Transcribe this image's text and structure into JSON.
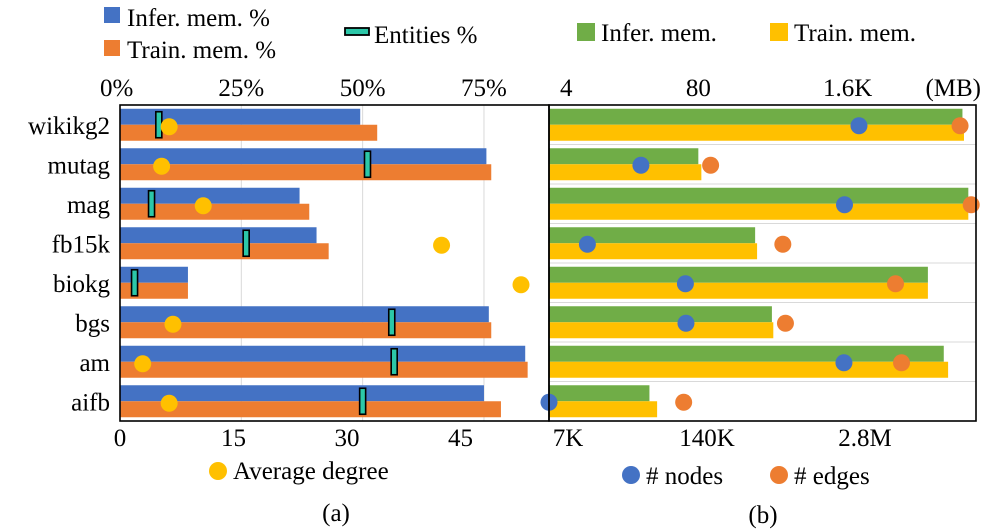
{
  "colors": {
    "infer_a": "#4472C4",
    "train_a": "#ED7D31",
    "entities": "#2CC7A8",
    "avg_degree": "#FFC000",
    "infer_b": "#70AD47",
    "train_b": "#FFC000",
    "nodes": "#4472C4",
    "edges": "#ED7D31"
  },
  "chart_data": [
    {
      "type": "bar",
      "caption": "(a)",
      "orientation": "horizontal",
      "categories": [
        "wikikg2",
        "mutag",
        "mag",
        "fb15k",
        "biokg",
        "bgs",
        "am",
        "aifb"
      ],
      "series": [
        {
          "name": "Infer. mem. %",
          "axis": "top",
          "values": [
            49.5,
            75.5,
            37,
            40.5,
            14,
            76,
            83.5,
            75
          ]
        },
        {
          "name": "Train. mem. %",
          "axis": "top",
          "values": [
            53,
            76.5,
            39,
            43,
            14,
            76.5,
            84,
            78.5
          ]
        },
        {
          "name": "Entities %",
          "axis": "top",
          "marker": "tick",
          "values": [
            8,
            51,
            6.5,
            26,
            3,
            56,
            56.5,
            50
          ]
        },
        {
          "name": "Average degree",
          "axis": "bottom",
          "marker": "dot",
          "values": [
            6.5,
            5.5,
            11,
            42.5,
            53,
            7,
            3,
            6.5
          ]
        }
      ],
      "top_axis": {
        "ticks": [
          "0%",
          "25%",
          "50%",
          "75%"
        ],
        "tick_values": [
          0,
          25,
          50,
          75
        ],
        "range": [
          0,
          88.4
        ]
      },
      "bottom_axis": {
        "ticks": [
          "0",
          "15",
          "30",
          "45"
        ],
        "tick_values": [
          0,
          15,
          30,
          45
        ],
        "range": [
          0,
          56.7
        ]
      },
      "legend": {
        "bar_items": [
          "Infer. mem. %",
          "Train. mem. %"
        ],
        "tick_item": "Entities %",
        "dot_item": "Average degree"
      }
    },
    {
      "type": "bar",
      "caption": "(b)",
      "orientation": "horizontal",
      "categories": [
        "wikikg2",
        "mutag",
        "mag",
        "fb15k",
        "biokg",
        "bgs",
        "am",
        "aifb"
      ],
      "series": [
        {
          "name": "Infer. mem.",
          "axis": "top",
          "scale": "log",
          "values": [
            16000,
            80,
            18000,
            250,
            8000,
            350,
            11000,
            30
          ]
        },
        {
          "name": "Train. mem.",
          "axis": "top",
          "scale": "log",
          "values": [
            16500,
            85,
            18000,
            260,
            8000,
            360,
            12000,
            35
          ]
        },
        {
          "name": "# nodes",
          "axis": "bottom",
          "scale": "log",
          "marker": "dot",
          "values": [
            2500000,
            40000,
            1900000,
            14500,
            93000,
            94000,
            1880000,
            7000
          ]
        },
        {
          "name": "# edges",
          "axis": "bottom",
          "scale": "log",
          "marker": "dot",
          "values": [
            17000000,
            150000,
            21000000,
            590000,
            5000000,
            620000,
            5600000,
            90000
          ]
        }
      ],
      "top_axis": {
        "ticks": [
          "4",
          "80",
          "1.6K"
        ],
        "tick_values": [
          4,
          80,
          1600
        ],
        "unit": "(MB)",
        "range": [
          4,
          21000
        ]
      },
      "bottom_axis": {
        "ticks": [
          "7K",
          "140K",
          "2.8M"
        ],
        "tick_values": [
          7000,
          140000,
          2800000
        ],
        "range": [
          7000,
          23000000
        ]
      },
      "legend": {
        "bar_items": [
          "Infer. mem.",
          "Train. mem."
        ],
        "dot_items": [
          "# nodes",
          "# edges"
        ]
      }
    }
  ]
}
